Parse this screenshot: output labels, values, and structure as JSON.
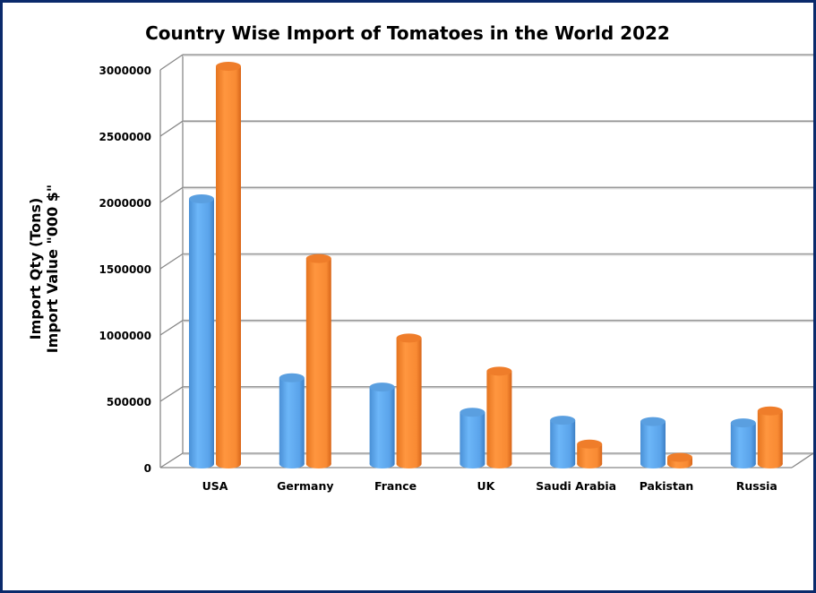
{
  "chart_data": {
    "type": "bar",
    "style": "3d-cylinder",
    "title": "Country Wise Import of Tomatoes in the World 2022",
    "ylabel_lines": [
      "Import Qty (Tons)",
      "Import Value \"000 $\""
    ],
    "xlabel": "",
    "categories": [
      "USA",
      "Germany",
      "France",
      "UK",
      "Saudi Arabia",
      "Pakistan",
      "Russia"
    ],
    "series": [
      {
        "name": "Import Qty (Tons)",
        "color": "#5aa7ee",
        "values": [
          2000000,
          650000,
          580000,
          390000,
          330000,
          320000,
          310000
        ]
      },
      {
        "name": "Import Value \"000 $\"",
        "color": "#f98b33",
        "values": [
          3000000,
          1550000,
          950000,
          700000,
          150000,
          50000,
          400000
        ]
      }
    ],
    "yticks": [
      "0",
      "500000",
      "1000000",
      "1500000",
      "2000000",
      "2500000",
      "3000000"
    ],
    "ylim": [
      0,
      3000000
    ],
    "grid": true,
    "legend": "none"
  }
}
